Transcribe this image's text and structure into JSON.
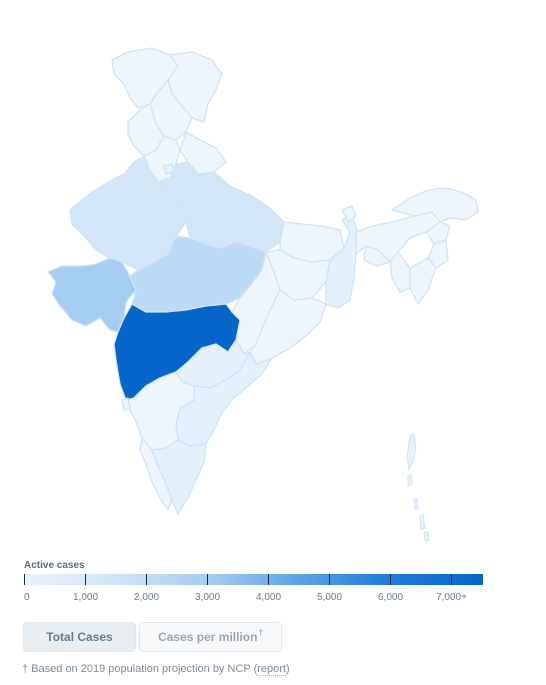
{
  "map": {
    "regions": [
      {
        "name": "Jammu & Kashmir",
        "level": 0
      },
      {
        "name": "Ladakh",
        "level": 0
      },
      {
        "name": "Himachal Pradesh",
        "level": 0
      },
      {
        "name": "Punjab",
        "level": 0
      },
      {
        "name": "Uttarakhand",
        "level": 0
      },
      {
        "name": "Haryana",
        "level": 0
      },
      {
        "name": "Delhi",
        "level": 1
      },
      {
        "name": "Rajasthan",
        "level": 2
      },
      {
        "name": "Uttar Pradesh",
        "level": 2
      },
      {
        "name": "Bihar",
        "level": 0
      },
      {
        "name": "Gujarat",
        "level": 4
      },
      {
        "name": "Madhya Pradesh",
        "level": 3
      },
      {
        "name": "Jharkhand",
        "level": 0
      },
      {
        "name": "West Bengal",
        "level": 1
      },
      {
        "name": "Chhattisgarh",
        "level": 0
      },
      {
        "name": "Odisha",
        "level": 0
      },
      {
        "name": "Maharashtra",
        "level": 5
      },
      {
        "name": "Telangana",
        "level": 1
      },
      {
        "name": "Andhra Pradesh",
        "level": 1
      },
      {
        "name": "Karnataka",
        "level": 0
      },
      {
        "name": "Goa",
        "level": 0
      },
      {
        "name": "Kerala",
        "level": 0
      },
      {
        "name": "Tamil Nadu",
        "level": 1
      },
      {
        "name": "Sikkim",
        "level": 0
      },
      {
        "name": "Assam",
        "level": 0
      },
      {
        "name": "Arunachal Pradesh",
        "level": 0
      },
      {
        "name": "Meghalaya",
        "level": 0
      },
      {
        "name": "Nagaland",
        "level": 0
      },
      {
        "name": "Manipur",
        "level": 0
      },
      {
        "name": "Mizoram",
        "level": 0
      },
      {
        "name": "Tripura",
        "level": 0
      },
      {
        "name": "Andaman & Nicobar Islands",
        "level": 0
      }
    ],
    "colors": {
      "low": "#eef5fc",
      "high": "#0565c9",
      "stroke": "#cfe4f7"
    }
  },
  "legend": {
    "title": "Active cases",
    "ticks": [
      "0",
      "1,000",
      "2,000",
      "3,000",
      "4,000",
      "5,000",
      "6,000",
      "7,000+"
    ],
    "min": 0,
    "max": 7500,
    "gradient": [
      "#eaf3fc",
      "#cfe4f8",
      "#a6cdf1",
      "#5aa2e6",
      "#1f7bd8",
      "#0565c9"
    ]
  },
  "toggles": {
    "total_label": "Total Cases",
    "million_label": "Cases per million",
    "million_marker": "†",
    "active": "total"
  },
  "footnote": {
    "text": "† Based on 2019 population projection by NCP (",
    "link": "report",
    "close": ")"
  }
}
